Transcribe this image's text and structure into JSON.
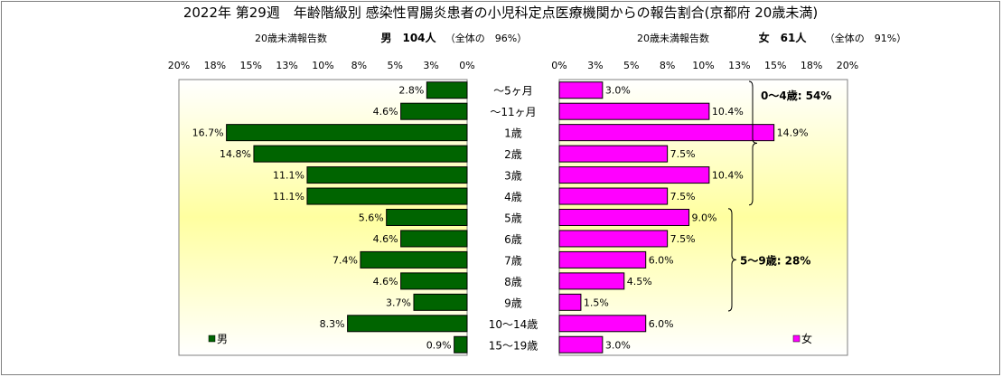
{
  "chart_data": {
    "type": "bar",
    "title": "2022年 第29週　年齢階級別 感染性胃腸炎患者の小児科定点医療機関からの報告割合(京都府 20歳未満)",
    "categories": [
      "～5ヶ月",
      "～11ヶ月",
      "1歳",
      "2歳",
      "3歳",
      "4歳",
      "5歳",
      "6歳",
      "7歳",
      "8歳",
      "9歳",
      "10～14歳",
      "15～19歳"
    ],
    "series": [
      {
        "name": "男",
        "color": "#006400",
        "values": [
          2.8,
          4.6,
          16.7,
          14.8,
          11.1,
          11.1,
          5.6,
          4.6,
          7.4,
          4.6,
          3.7,
          8.3,
          0.9
        ],
        "header_label": "20歳未満報告数",
        "header_value": "男　104人",
        "header_share": "（全体の　96%）",
        "legend": "男"
      },
      {
        "name": "女",
        "color": "#ff00ff",
        "values": [
          3.0,
          10.4,
          14.9,
          7.5,
          10.4,
          7.5,
          9.0,
          7.5,
          6.0,
          4.5,
          1.5,
          6.0,
          3.0
        ],
        "header_label": "20歳未満報告数",
        "header_value": "女　61人",
        "header_share": "（全体の　91%）",
        "legend": "女"
      }
    ],
    "xlim": [
      0,
      20
    ],
    "tick_labels_male": [
      "20%",
      "18%",
      "15%",
      "13%",
      "10%",
      "8%",
      "5%",
      "3%",
      "0%"
    ],
    "tick_labels_female": [
      "0%",
      "3%",
      "5%",
      "8%",
      "10%",
      "13%",
      "15%",
      "18%",
      "20%"
    ],
    "annotations": [
      {
        "text": "0～4歳: 54%",
        "from_index": 0,
        "to_index": 5
      },
      {
        "text": "5～9歳: 28%",
        "from_index": 6,
        "to_index": 10
      }
    ]
  }
}
